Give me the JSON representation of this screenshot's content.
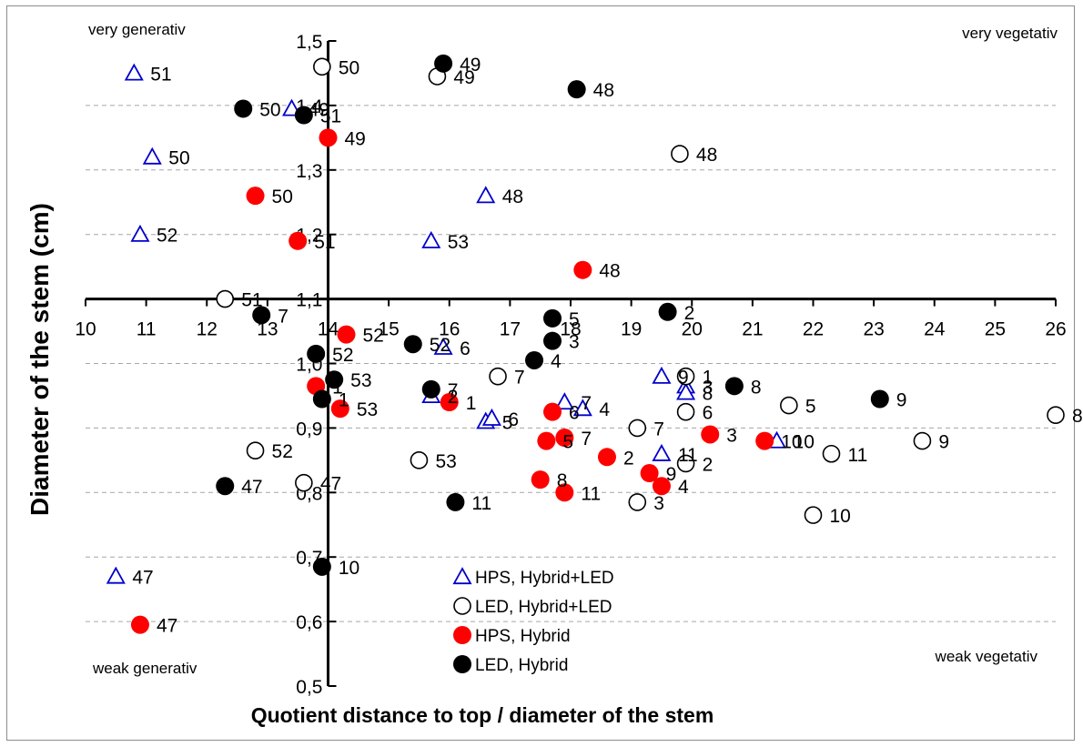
{
  "chart_data": {
    "type": "scatter",
    "xlabel": "Quotient distance to top / diameter of the stem",
    "ylabel": "Diameter of the stem (cm)",
    "xlim": [
      10,
      26
    ],
    "ylim": [
      0.5,
      1.5
    ],
    "x_ticks": [
      "10",
      "11",
      "12",
      "13",
      "14",
      "15",
      "16",
      "17",
      "18",
      "19",
      "20",
      "21",
      "22",
      "23",
      "24",
      "25",
      "26"
    ],
    "y_ticks": [
      "0,5",
      "0,6",
      "0,7",
      "0,8",
      "0,9",
      "1,0",
      "1,1",
      "1,2",
      "1,3",
      "1,4",
      "1,5"
    ],
    "grid": "horizontal dashed",
    "axis_cross": {
      "x": 14,
      "y": 1.1
    },
    "corner_labels": {
      "top_left": "very generativ",
      "top_right": "very vegetativ",
      "bottom_left": "weak generativ",
      "bottom_right": "weak vegetativ"
    },
    "legend_position": "bottom-center",
    "series": [
      {
        "name": "HPS, Hybrid+LED",
        "marker": "triangle",
        "color": "#0000cc",
        "points": [
          {
            "x": 10.8,
            "y": 1.45,
            "label": "51"
          },
          {
            "x": 11.1,
            "y": 1.32,
            "label": "50"
          },
          {
            "x": 10.9,
            "y": 1.2,
            "label": "52"
          },
          {
            "x": 10.5,
            "y": 0.67,
            "label": "47"
          },
          {
            "x": 13.4,
            "y": 1.395,
            "label": "49"
          },
          {
            "x": 15.7,
            "y": 1.19,
            "label": "53"
          },
          {
            "x": 16.6,
            "y": 1.26,
            "label": "48"
          },
          {
            "x": 15.9,
            "y": 1.025,
            "label": "6"
          },
          {
            "x": 15.7,
            "y": 0.95,
            "label": "2"
          },
          {
            "x": 16.6,
            "y": 0.91,
            "label": "5"
          },
          {
            "x": 16.7,
            "y": 0.915,
            "label": "6"
          },
          {
            "x": 17.9,
            "y": 0.94,
            "label": "7"
          },
          {
            "x": 18.2,
            "y": 0.93,
            "label": "4"
          },
          {
            "x": 19.5,
            "y": 0.98,
            "label": "9"
          },
          {
            "x": 19.9,
            "y": 0.965,
            "label": "3"
          },
          {
            "x": 19.9,
            "y": 0.955,
            "label": "8"
          },
          {
            "x": 19.5,
            "y": 0.86,
            "label": "11"
          },
          {
            "x": 21.4,
            "y": 0.88,
            "label": "10"
          }
        ]
      },
      {
        "name": "LED, Hybrid+LED",
        "marker": "circle-open",
        "color": "#000000",
        "points": [
          {
            "x": 13.9,
            "y": 1.46,
            "label": "50"
          },
          {
            "x": 15.8,
            "y": 1.445,
            "label": "49"
          },
          {
            "x": 19.8,
            "y": 1.325,
            "label": "48"
          },
          {
            "x": 12.3,
            "y": 1.1,
            "label": "51"
          },
          {
            "x": 12.8,
            "y": 0.865,
            "label": "52"
          },
          {
            "x": 13.6,
            "y": 0.815,
            "label": "47"
          },
          {
            "x": 15.5,
            "y": 0.85,
            "label": "53"
          },
          {
            "x": 16.8,
            "y": 0.98,
            "label": "7"
          },
          {
            "x": 19.1,
            "y": 0.9,
            "label": "7"
          },
          {
            "x": 19.1,
            "y": 0.785,
            "label": "3"
          },
          {
            "x": 19.9,
            "y": 0.98,
            "label": "1"
          },
          {
            "x": 19.9,
            "y": 0.925,
            "label": "6"
          },
          {
            "x": 19.9,
            "y": 0.845,
            "label": "2"
          },
          {
            "x": 21.6,
            "y": 0.935,
            "label": "5"
          },
          {
            "x": 22.3,
            "y": 0.86,
            "label": "11"
          },
          {
            "x": 22.0,
            "y": 0.765,
            "label": "10"
          },
          {
            "x": 23.8,
            "y": 0.88,
            "label": "9"
          },
          {
            "x": 26.0,
            "y": 0.92,
            "label": "8"
          }
        ]
      },
      {
        "name": "HPS, Hybrid",
        "marker": "circle-filled",
        "color": "#ff0000",
        "points": [
          {
            "x": 14.0,
            "y": 1.35,
            "label": "49"
          },
          {
            "x": 12.8,
            "y": 1.26,
            "label": "50"
          },
          {
            "x": 13.5,
            "y": 1.19,
            "label": "51"
          },
          {
            "x": 18.2,
            "y": 1.145,
            "label": "48"
          },
          {
            "x": 10.9,
            "y": 0.595,
            "label": "47"
          },
          {
            "x": 14.3,
            "y": 1.045,
            "label": "52"
          },
          {
            "x": 13.8,
            "y": 0.965,
            "label": "1"
          },
          {
            "x": 14.2,
            "y": 0.93,
            "label": "53"
          },
          {
            "x": 16.0,
            "y": 0.94,
            "label": "1"
          },
          {
            "x": 17.7,
            "y": 0.925,
            "label": "6"
          },
          {
            "x": 17.6,
            "y": 0.88,
            "label": "5"
          },
          {
            "x": 17.9,
            "y": 0.885,
            "label": "7"
          },
          {
            "x": 17.5,
            "y": 0.82,
            "label": "8"
          },
          {
            "x": 17.9,
            "y": 0.8,
            "label": "11"
          },
          {
            "x": 18.6,
            "y": 0.855,
            "label": "2"
          },
          {
            "x": 19.3,
            "y": 0.83,
            "label": "9"
          },
          {
            "x": 19.5,
            "y": 0.81,
            "label": "4"
          },
          {
            "x": 20.3,
            "y": 0.89,
            "label": "3"
          },
          {
            "x": 21.2,
            "y": 0.88,
            "label": "10"
          }
        ]
      },
      {
        "name": "LED, Hybrid",
        "marker": "circle-filled",
        "color": "#000000",
        "points": [
          {
            "x": 15.9,
            "y": 1.465,
            "label": "49"
          },
          {
            "x": 18.1,
            "y": 1.425,
            "label": "48"
          },
          {
            "x": 12.6,
            "y": 1.395,
            "label": "50"
          },
          {
            "x": 13.6,
            "y": 1.385,
            "label": "51"
          },
          {
            "x": 12.9,
            "y": 1.075,
            "label": "7"
          },
          {
            "x": 13.8,
            "y": 1.015,
            "label": "52"
          },
          {
            "x": 14.1,
            "y": 0.975,
            "label": "53"
          },
          {
            "x": 13.9,
            "y": 0.945,
            "label": "1"
          },
          {
            "x": 15.4,
            "y": 1.03,
            "label": "52"
          },
          {
            "x": 15.7,
            "y": 0.96,
            "label": "7"
          },
          {
            "x": 17.4,
            "y": 1.005,
            "label": "4"
          },
          {
            "x": 17.7,
            "y": 1.07,
            "label": "5"
          },
          {
            "x": 17.7,
            "y": 1.035,
            "label": "3"
          },
          {
            "x": 19.6,
            "y": 1.08,
            "label": "2"
          },
          {
            "x": 20.7,
            "y": 0.965,
            "label": "8"
          },
          {
            "x": 23.1,
            "y": 0.945,
            "label": "9"
          },
          {
            "x": 12.3,
            "y": 0.81,
            "label": "47"
          },
          {
            "x": 16.1,
            "y": 0.785,
            "label": "11"
          },
          {
            "x": 13.9,
            "y": 0.685,
            "label": "10"
          }
        ]
      }
    ]
  }
}
